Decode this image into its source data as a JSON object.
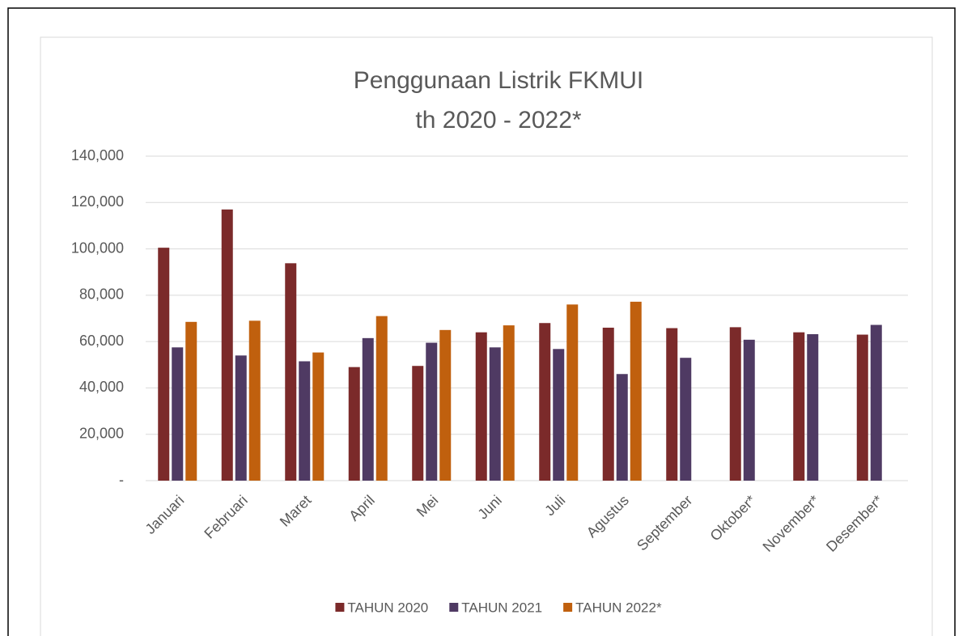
{
  "chart_data": {
    "type": "bar",
    "title": [
      "Penggunaan Listrik FKMUI",
      "th 2020 - 2022*"
    ],
    "categories": [
      "Januari",
      "Februari",
      "Maret",
      "April",
      "Mei",
      "Juni",
      "Juli",
      "Agustus",
      "September",
      "Oktober*",
      "November*",
      "Desember*"
    ],
    "series": [
      {
        "name": "TAHUN 2020",
        "color": "#7b2a2a",
        "values": [
          100500,
          117000,
          93800,
          49000,
          49500,
          64000,
          68000,
          66000,
          65800,
          66200,
          64000,
          63000
        ]
      },
      {
        "name": "TAHUN 2021",
        "color": "#4f3a63",
        "values": [
          57500,
          54000,
          51500,
          61500,
          59500,
          57500,
          56800,
          46000,
          53000,
          60800,
          63200,
          67200
        ]
      },
      {
        "name": "TAHUN 2022*",
        "color": "#c0600e",
        "values": [
          68500,
          69000,
          55300,
          71000,
          65000,
          67000,
          76000,
          77200,
          null,
          null,
          null,
          null
        ]
      }
    ],
    "ylim": [
      0,
      140000
    ],
    "yticks": [
      {
        "value": 0,
        "label": "-"
      },
      {
        "value": 20000,
        "label": "20,000"
      },
      {
        "value": 40000,
        "label": "40,000"
      },
      {
        "value": 60000,
        "label": "60,000"
      },
      {
        "value": 80000,
        "label": "80,000"
      },
      {
        "value": 100000,
        "label": "100,000"
      },
      {
        "value": 120000,
        "label": "120,000"
      },
      {
        "value": 140000,
        "label": "140,000"
      }
    ],
    "grid": true,
    "legend": "bottom"
  }
}
